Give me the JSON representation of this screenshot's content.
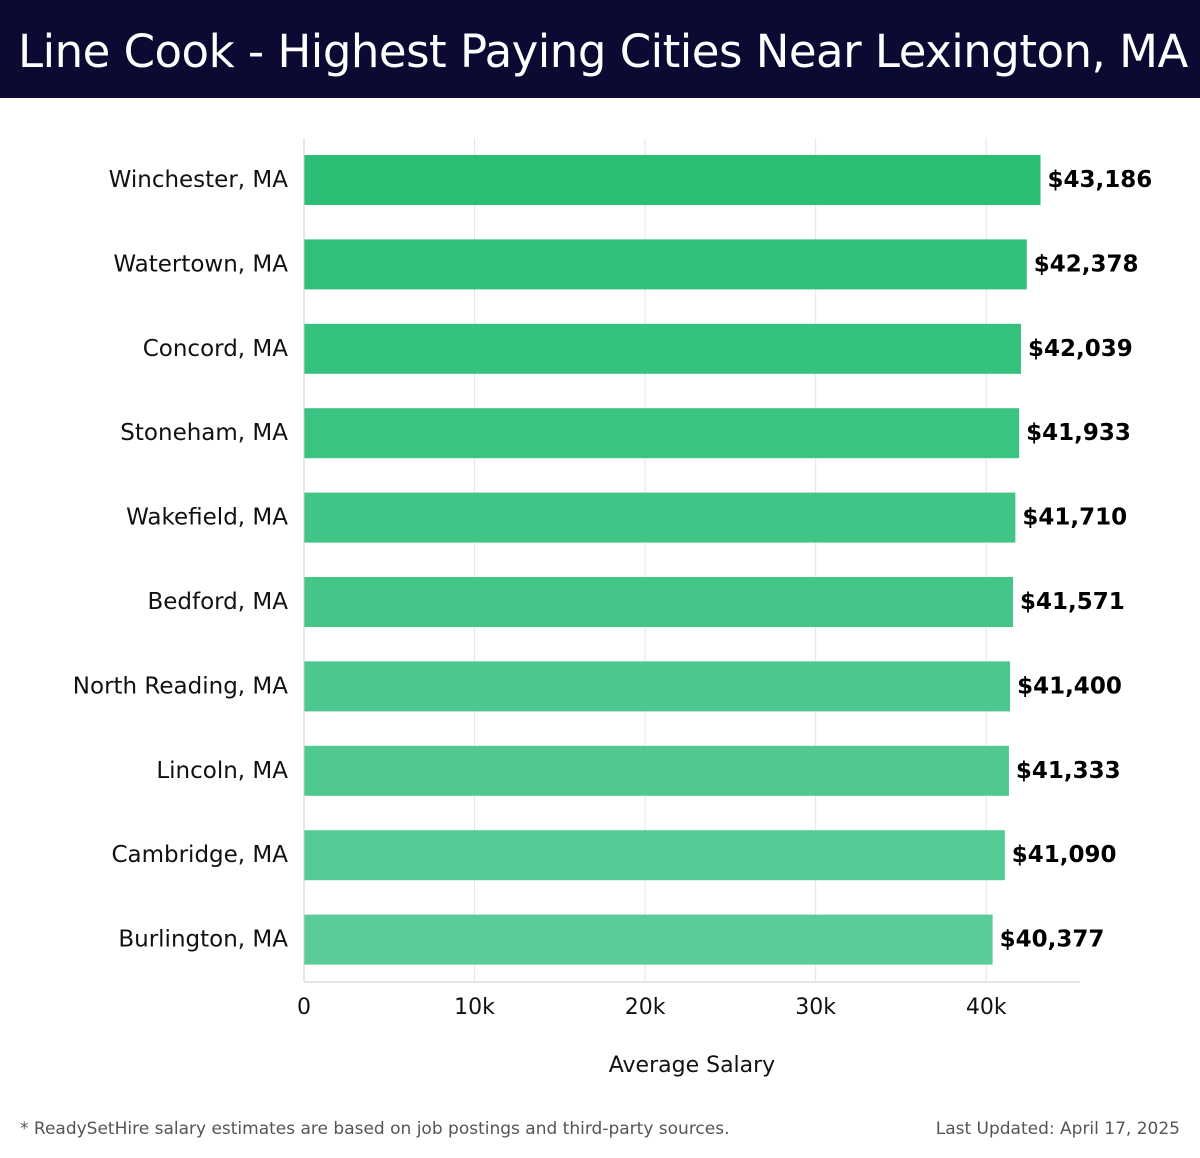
{
  "header": {
    "title": "Line Cook - Highest Paying Cities Near Lexington, MA"
  },
  "chart_data": {
    "type": "bar",
    "orientation": "horizontal",
    "categories": [
      "Winchester, MA",
      "Watertown, MA",
      "Concord, MA",
      "Stoneham, MA",
      "Wakefield, MA",
      "Bedford, MA",
      "North Reading, MA",
      "Lincoln, MA",
      "Cambridge, MA",
      "Burlington, MA"
    ],
    "values": [
      43186,
      42378,
      42039,
      41933,
      41710,
      41571,
      41400,
      41333,
      41090,
      40377
    ],
    "value_labels": [
      "$43,186",
      "$42,378",
      "$42,039",
      "$41,933",
      "$41,710",
      "$41,571",
      "$41,400",
      "$41,333",
      "$41,090",
      "$40,377"
    ],
    "xlabel": "Average Salary",
    "ylabel": "",
    "xlim": [
      0,
      45500
    ],
    "x_ticks": [
      0,
      10000,
      20000,
      30000,
      40000
    ],
    "x_tick_labels": [
      "0",
      "10k",
      "20k",
      "30k",
      "40k"
    ],
    "grid": true,
    "bar_color_top": "#2bbf76",
    "bar_color_bottom": "#59cc98"
  },
  "footer": {
    "note": "* ReadySetHire salary estimates are based on job postings and third-party sources.",
    "last_updated": "Last Updated: April 17, 2025"
  }
}
